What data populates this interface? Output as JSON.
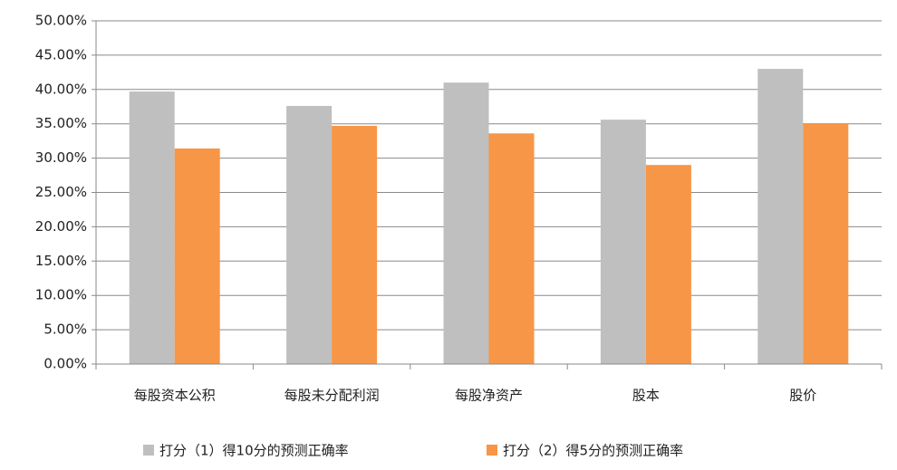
{
  "chart_data": {
    "type": "bar",
    "categories": [
      "每股资本公积",
      "每股未分配利润",
      "每股净资产",
      "股本",
      "股价"
    ],
    "series": [
      {
        "name": "打分（1）得10分的预测正确率",
        "color": "#bfbfbf",
        "values": [
          39.7,
          37.6,
          41.0,
          35.6,
          43.0
        ]
      },
      {
        "name": "打分（2）得5分的预测正确率",
        "color": "#f79646",
        "values": [
          31.4,
          34.7,
          33.6,
          29.0,
          35.1
        ]
      }
    ],
    "ylim": [
      0,
      50
    ],
    "yticks": [
      {
        "value": 0,
        "label": "0.00%"
      },
      {
        "value": 5,
        "label": "5.00%"
      },
      {
        "value": 10,
        "label": "10.00%"
      },
      {
        "value": 15,
        "label": "15.00%"
      },
      {
        "value": 20,
        "label": "20.00%"
      },
      {
        "value": 25,
        "label": "25.00%"
      },
      {
        "value": 30,
        "label": "30.00%"
      },
      {
        "value": 35,
        "label": "35.00%"
      },
      {
        "value": 40,
        "label": "40.00%"
      },
      {
        "value": 45,
        "label": "45.00%"
      },
      {
        "value": 50,
        "label": "50.00%"
      }
    ],
    "grid": true
  }
}
